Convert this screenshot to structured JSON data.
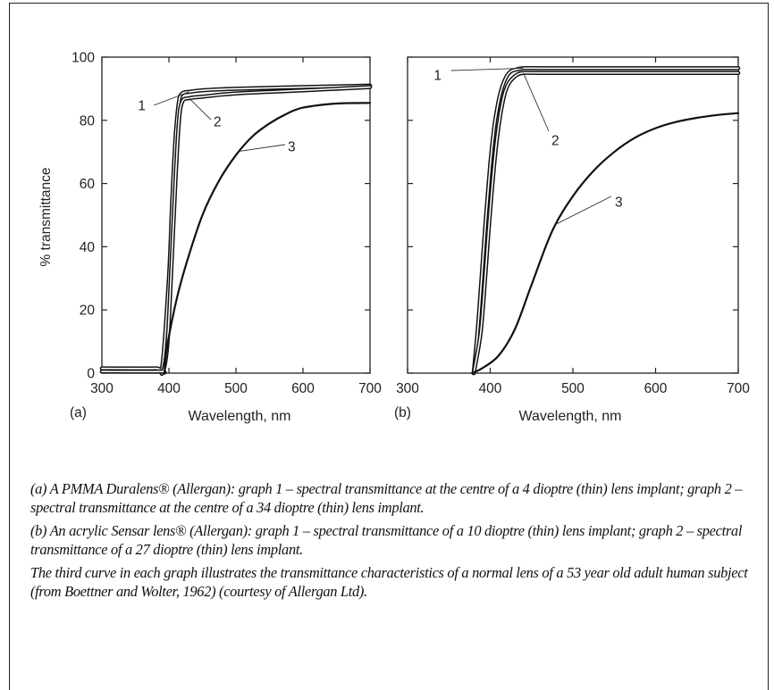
{
  "chart_data": [
    {
      "type": "line",
      "panel_label": "(a)",
      "xlabel": "Wavelength, nm",
      "ylabel": "% transmittance",
      "xlim": [
        300,
        700
      ],
      "ylim": [
        0,
        100
      ],
      "xticks": [
        300,
        400,
        500,
        600,
        700
      ],
      "yticks": [
        0,
        20,
        40,
        60,
        80,
        100
      ],
      "grid": false,
      "series": [
        {
          "name": "1",
          "x": [
            300,
            380,
            390,
            400,
            405,
            410,
            415,
            420,
            430,
            450,
            500,
            600,
            700
          ],
          "y": [
            1.5,
            1.5,
            2,
            30,
            55,
            75,
            86,
            88.5,
            89,
            89.5,
            90,
            90.5,
            91
          ]
        },
        {
          "name": "2",
          "x": [
            300,
            385,
            392,
            398,
            404,
            410,
            415,
            420,
            430,
            450,
            500,
            600,
            700
          ],
          "y": [
            0.5,
            0.5,
            1,
            10,
            35,
            62,
            80,
            86,
            87,
            87.5,
            88.5,
            89.5,
            90.5
          ]
        },
        {
          "name": "3",
          "x": [
            393,
            397,
            410,
            425,
            450,
            475,
            500,
            525,
            550,
            575,
            600,
            650,
            700
          ],
          "y": [
            0,
            8,
            22,
            34,
            50,
            61,
            69,
            75,
            79,
            82,
            84,
            85.3,
            85.5
          ]
        }
      ]
    },
    {
      "type": "line",
      "panel_label": "(b)",
      "xlabel": "Wavelength, nm",
      "ylabel": "",
      "xlim": [
        300,
        700
      ],
      "ylim": [
        0,
        100
      ],
      "xticks": [
        300,
        400,
        500,
        600,
        700
      ],
      "yticks": [
        0,
        20,
        40,
        60,
        80,
        100
      ],
      "show_ytick_labels": false,
      "grid": false,
      "series": [
        {
          "name": "1",
          "x": [
            380,
            385,
            390,
            395,
            400,
            405,
            410,
            415,
            420,
            425,
            430,
            440,
            460,
            500,
            600,
            700
          ],
          "y": [
            0,
            14,
            32,
            50,
            66,
            78,
            86,
            91,
            94,
            95.5,
            96,
            96.5,
            96.5,
            96.5,
            96.5,
            96.5
          ]
        },
        {
          "name": "2",
          "x": [
            380,
            388,
            393,
            398,
            403,
            408,
            413,
            418,
            423,
            428,
            433,
            440,
            460,
            500,
            600,
            700
          ],
          "y": [
            0,
            12,
            27,
            45,
            61,
            74,
            83,
            89,
            92,
            93.5,
            94.5,
            95,
            95,
            95,
            95,
            95
          ]
        },
        {
          "name": "3",
          "x": [
            378,
            390,
            410,
            430,
            450,
            475,
            500,
            525,
            550,
            575,
            600,
            625,
            650,
            675,
            700
          ],
          "y": [
            0,
            1.5,
            5.5,
            14,
            28,
            45,
            56,
            64,
            70,
            74.5,
            77.5,
            79.5,
            80.8,
            81.7,
            82.3
          ]
        }
      ]
    }
  ],
  "caption": {
    "a": "(a)  A PMMA Duralens® (Allergan): graph 1 – spectral transmittance at the centre of a 4 dioptre (thin) lens implant; graph 2 – spectral transmittance at the centre of a 34 dioptre (thin) lens implant.",
    "b": "(b)  An acrylic Sensar lens® (Allergan): graph 1 – spectral transmittance of a 10 dioptre (thin) lens implant; graph 2 – spectral transmittance of a 27 dioptre (thin) lens implant.",
    "note": "The third curve in each graph illustrates the transmittance characteristics of a normal lens of a 53 year old adult human subject (from Boettner and Wolter, 1962) (courtesy of Allergan Ltd)."
  }
}
